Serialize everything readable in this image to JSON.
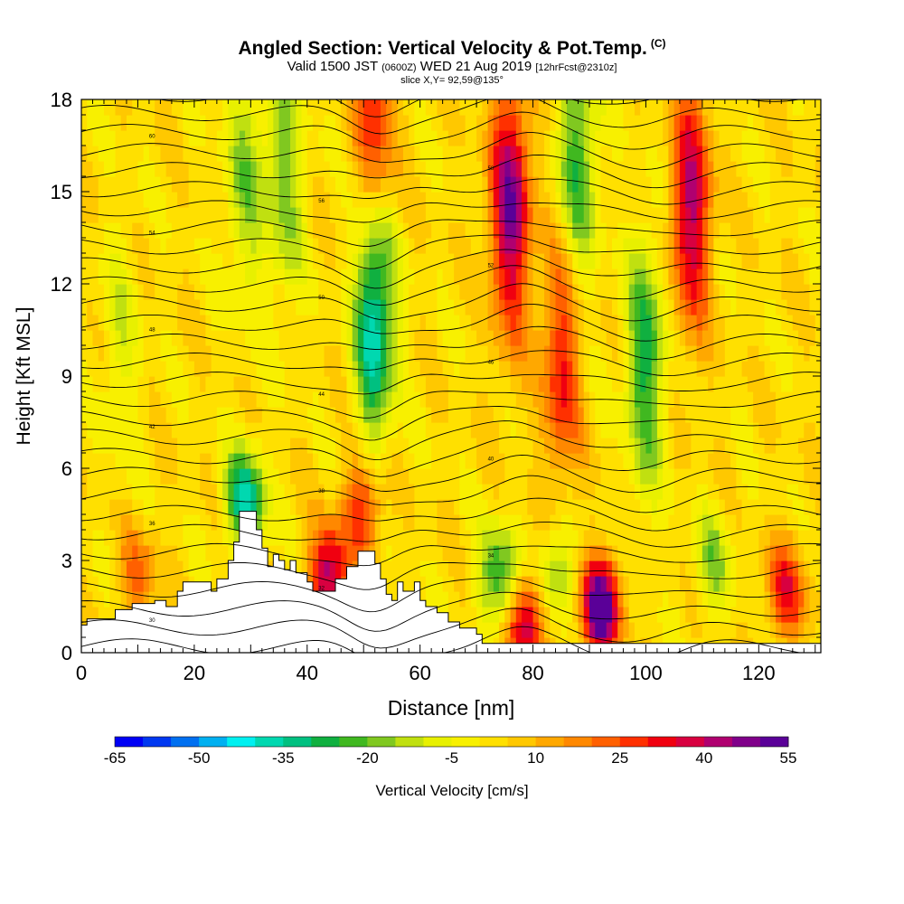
{
  "header": {
    "title": "Angled Section: Vertical Velocity & Pot.Temp.",
    "title_units": "(C)",
    "valid_prefix": "Valid 1500 JST",
    "valid_utc": "(0600Z)",
    "valid_date": "WED 21 Aug 2019",
    "forecast": "[12hrFcst@2310z]",
    "slice": "slice X,Y= 92,59@135°"
  },
  "chart_data": {
    "type": "heatmap",
    "xlabel": "Distance [nm]",
    "ylabel": "Height [Kft MSL]",
    "xlim": [
      0,
      131
    ],
    "ylim": [
      0,
      18
    ],
    "x_ticks": [
      0,
      20,
      40,
      60,
      80,
      100,
      120
    ],
    "y_ticks": [
      0,
      3,
      6,
      9,
      12,
      15,
      18
    ],
    "colorbar": {
      "label": "Vertical Velocity [cm/s]",
      "tick_labels": [
        -65,
        -50,
        -35,
        -20,
        -5,
        10,
        25,
        40,
        55
      ],
      "colors": [
        "#0000f5",
        "#0038f0",
        "#0070f0",
        "#00b0f0",
        "#00f0f0",
        "#00d8b0",
        "#00c080",
        "#10b040",
        "#40b820",
        "#80c820",
        "#c0e010",
        "#e8f000",
        "#f8f000",
        "#ffe000",
        "#ffc800",
        "#ffa800",
        "#ff8800",
        "#ff6000",
        "#ff3000",
        "#f00010",
        "#d80040",
        "#b00070",
        "#80008a",
        "#5a0098"
      ]
    },
    "background_velocity": 3,
    "velocity_features": [
      {
        "x": 76,
        "y": 14.5,
        "value": 45
      },
      {
        "x": 85,
        "y": 9.5,
        "value": 28
      },
      {
        "x": 108,
        "y": 14.5,
        "value": 38
      },
      {
        "x": 52,
        "y": 17.2,
        "value": 30
      },
      {
        "x": 44,
        "y": 2.5,
        "value": 40
      },
      {
        "x": 50,
        "y": 4.8,
        "value": 28
      },
      {
        "x": 92,
        "y": 1.5,
        "value": 55
      },
      {
        "x": 79,
        "y": 1.0,
        "value": 38
      },
      {
        "x": 125,
        "y": 2.0,
        "value": 28
      },
      {
        "x": 10,
        "y": 2.5,
        "value": 18
      },
      {
        "x": 52,
        "y": 11,
        "value": -45
      },
      {
        "x": 88,
        "y": 16,
        "value": -28
      },
      {
        "x": 100,
        "y": 9.5,
        "value": -30
      },
      {
        "x": 36,
        "y": 15.5,
        "value": -20
      },
      {
        "x": 29,
        "y": 15.5,
        "value": -18
      },
      {
        "x": 74,
        "y": 2.5,
        "value": -30
      },
      {
        "x": 84,
        "y": 2.5,
        "value": -22
      },
      {
        "x": 112,
        "y": 3.0,
        "value": -18
      },
      {
        "x": 7,
        "y": 10.0,
        "value": -10
      },
      {
        "x": 29,
        "y": 5.0,
        "value": -40
      }
    ],
    "terrain_kft": [
      [
        0,
        0.9
      ],
      [
        1,
        0.9
      ],
      [
        1,
        1.1
      ],
      [
        6,
        1.1
      ],
      [
        6,
        1.4
      ],
      [
        9,
        1.4
      ],
      [
        9,
        1.6
      ],
      [
        13,
        1.6
      ],
      [
        13,
        1.7
      ],
      [
        15,
        1.7
      ],
      [
        15,
        1.5
      ],
      [
        17,
        1.5
      ],
      [
        17,
        2.0
      ],
      [
        18,
        2.0
      ],
      [
        18,
        2.3
      ],
      [
        23,
        2.3
      ],
      [
        23,
        2.0
      ],
      [
        24,
        2.0
      ],
      [
        24,
        2.4
      ],
      [
        26,
        2.4
      ],
      [
        26,
        3.0
      ],
      [
        27,
        3.0
      ],
      [
        27,
        3.6
      ],
      [
        28,
        3.6
      ],
      [
        28,
        4.6
      ],
      [
        31,
        4.6
      ],
      [
        31,
        4.0
      ],
      [
        32,
        4.0
      ],
      [
        32,
        3.4
      ],
      [
        33,
        3.4
      ],
      [
        33,
        2.8
      ],
      [
        34,
        2.8
      ],
      [
        34,
        3.2
      ],
      [
        35,
        3.2
      ],
      [
        35,
        3.0
      ],
      [
        36,
        3.0
      ],
      [
        36,
        2.7
      ],
      [
        37,
        2.7
      ],
      [
        37,
        3.0
      ],
      [
        38,
        3.0
      ],
      [
        38,
        2.6
      ],
      [
        40,
        2.6
      ],
      [
        40,
        2.3
      ],
      [
        41,
        2.3
      ],
      [
        41,
        2.0
      ],
      [
        45,
        2.0
      ],
      [
        45,
        2.4
      ],
      [
        47,
        2.4
      ],
      [
        47,
        2.8
      ],
      [
        49,
        2.8
      ],
      [
        49,
        3.3
      ],
      [
        52,
        3.3
      ],
      [
        52,
        2.9
      ],
      [
        53,
        2.9
      ],
      [
        53,
        2.4
      ],
      [
        54,
        2.4
      ],
      [
        54,
        1.9
      ],
      [
        55,
        1.9
      ],
      [
        55,
        1.7
      ],
      [
        56,
        1.7
      ],
      [
        56,
        2.3
      ],
      [
        57,
        2.3
      ],
      [
        57,
        2.0
      ],
      [
        59,
        2.0
      ],
      [
        59,
        2.3
      ],
      [
        60,
        2.3
      ],
      [
        60,
        1.7
      ],
      [
        61,
        1.7
      ],
      [
        61,
        1.5
      ],
      [
        63,
        1.5
      ],
      [
        63,
        1.3
      ],
      [
        65,
        1.3
      ],
      [
        65,
        1.0
      ],
      [
        67,
        1.0
      ],
      [
        67,
        0.8
      ],
      [
        70,
        0.8
      ],
      [
        70,
        0.6
      ],
      [
        71,
        0.6
      ],
      [
        71,
        0.3
      ],
      [
        131,
        0.3
      ]
    ],
    "isentropes": {
      "count": 32,
      "spacing_kft": 0.62,
      "labels": [
        "30",
        "32",
        "34",
        "36",
        "38",
        "40",
        "42",
        "44",
        "46",
        "48",
        "50",
        "52",
        "54",
        "56",
        "58",
        "60"
      ]
    }
  }
}
